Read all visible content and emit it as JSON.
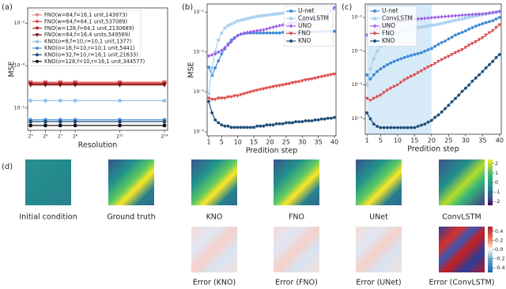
{
  "chart_data": [
    {
      "type": "line",
      "label": "(a)",
      "xlabel": "Resolution",
      "ylabel": "MSE",
      "xscale": "log",
      "yscale": "log",
      "legend": "upper left",
      "xlim": [
        28,
        19000
      ],
      "ylim": [
        3e-06,
        0.0023
      ],
      "xticks": [
        {
          "value": 32,
          "label": "2⁵"
        },
        {
          "value": 64,
          "label": "2⁶"
        },
        {
          "value": 128,
          "label": "2⁷"
        },
        {
          "value": 256,
          "label": "2⁸"
        },
        {
          "value": 2048,
          "label": "2¹¹"
        },
        {
          "value": 16384,
          "label": "2¹⁴"
        }
      ],
      "yticks": [
        {
          "value": 0.001,
          "label": "10⁻³"
        },
        {
          "value": 0.0001,
          "label": "10⁻⁴"
        },
        {
          "value": 1e-05,
          "label": "10⁻⁵"
        }
      ],
      "x": [
        32,
        64,
        128,
        256,
        2048,
        16384
      ],
      "series": [
        {
          "name": "FNO(w=64,f=16,1 unit,143873)",
          "color": "#e88080",
          "marker": "tri",
          "values": [
            4.1e-05,
            4.1e-05,
            4.1e-05,
            4.1e-05,
            4.1e-05,
            4.1e-05
          ]
        },
        {
          "name": "FNO(w=64,f=64,1 unit,537089)",
          "color": "#d44b4b",
          "marker": "tri",
          "values": [
            3.9e-05,
            3.9e-05,
            3.9e-05,
            3.9e-05,
            3.9e-05,
            3.9e-05
          ]
        },
        {
          "name": "FNO(w=128,f=64,1 unit,2130689)",
          "color": "#b02323",
          "marker": "tri",
          "values": [
            3.7e-05,
            3.7e-05,
            3.7e-05,
            3.7e-05,
            3.7e-05,
            3.7e-05
          ]
        },
        {
          "name": "FNO(w=64,f=16,4 units,549569)",
          "color": "#7a1010",
          "marker": "tri",
          "values": [
            3.5e-05,
            3.5e-05,
            3.5e-05,
            3.5e-05,
            3.5e-05,
            3.5e-05
          ]
        },
        {
          "name": "KNO(o=8,f=10,r=10,1 unit,1377)",
          "color": "#8fc1ec",
          "marker": "circle",
          "values": [
            1.5e-05,
            1.5e-05,
            1.5e-05,
            1.5e-05,
            1.5e-05,
            1.5e-05
          ]
        },
        {
          "name": "KNO(o=16,f=10,r=10,1 unit,5441)",
          "color": "#4a90d9",
          "marker": "circle",
          "values": [
            5.3e-06,
            5.3e-06,
            5.3e-06,
            5.3e-06,
            5.3e-06,
            5.3e-06
          ]
        },
        {
          "name": "KNO(o=32,f=10,r=16,1 unit,21633)",
          "color": "#1f4e79",
          "marker": "circle",
          "values": [
            4.8e-06,
            4.8e-06,
            4.8e-06,
            4.8e-06,
            4.8e-06,
            4.8e-06
          ]
        },
        {
          "name": "KNO(o=128,f=10,r=16,1 unit,344577)",
          "color": "#111111",
          "marker": "circle",
          "values": [
            3.9e-06,
            3.9e-06,
            3.9e-06,
            3.9e-06,
            3.9e-06,
            3.9e-06
          ]
        }
      ]
    },
    {
      "type": "line",
      "label": "(b)",
      "xlabel": "Predition step",
      "ylabel": "MSE",
      "yscale": "log",
      "legend": "upper right",
      "xlim": [
        0.5,
        40.5
      ],
      "ylim": [
        8e-05,
        0.16
      ],
      "xticks": [
        1,
        5,
        10,
        15,
        20,
        25,
        30,
        35,
        40
      ],
      "yticks": [
        {
          "value": 0.0001,
          "label": "10⁻⁴"
        },
        {
          "value": 0.001,
          "label": "10⁻³"
        },
        {
          "value": 0.01,
          "label": "10⁻²"
        },
        {
          "value": 0.1,
          "label": "10⁻¹"
        }
      ],
      "x": [
        1,
        2,
        3,
        4,
        5,
        6,
        7,
        8,
        9,
        10,
        11,
        12,
        13,
        14,
        15,
        16,
        17,
        18,
        19,
        20,
        21,
        22,
        23,
        24,
        25,
        26,
        27,
        28,
        29,
        30,
        31,
        32,
        33,
        34,
        35,
        36,
        37,
        38,
        39,
        40
      ],
      "series": [
        {
          "name": "U-net",
          "color": "#3d8ad6",
          "marker": "circle",
          "values": [
            0.0042,
            0.0026,
            0.004,
            0.006,
            0.009,
            0.012,
            0.016,
            0.02,
            0.023,
            0.026,
            0.028,
            0.029,
            0.03,
            0.03,
            0.03,
            0.03,
            0.03,
            0.03,
            0.03,
            0.03,
            0.03,
            0.03,
            0.03,
            0.031,
            0.031,
            0.031,
            0.031,
            0.031,
            0.031,
            0.032,
            0.032,
            0.032,
            0.032,
            0.032,
            0.032,
            0.033,
            0.033,
            0.033,
            0.033,
            0.033
          ]
        },
        {
          "name": "ConvLSTM",
          "color": "#a9d0f2",
          "marker": "square",
          "values": [
            0.0009,
            0.004,
            0.01,
            0.02,
            0.03,
            0.04,
            0.046,
            0.05,
            0.055,
            0.06,
            0.063,
            0.066,
            0.069,
            0.072,
            0.075,
            0.078,
            0.08,
            0.082,
            0.084,
            0.086,
            0.088,
            0.09,
            0.092,
            0.094,
            0.096,
            0.098,
            0.1,
            0.102,
            0.104,
            0.106,
            0.108,
            0.11,
            0.112,
            0.113,
            0.114,
            0.115,
            0.116,
            0.117,
            0.118,
            0.12
          ]
        },
        {
          "name": "UNO",
          "color": "#9b5de5",
          "marker": "diamond",
          "values": [
            0.008,
            0.0085,
            0.009,
            0.01,
            0.011,
            0.013,
            0.015,
            0.018,
            0.022,
            0.026,
            0.028,
            0.03,
            0.031,
            0.032,
            0.033,
            0.034,
            0.035,
            0.036,
            0.038,
            0.04,
            0.042,
            0.044,
            0.046,
            0.048,
            0.05,
            0.052,
            0.054,
            0.056,
            0.058,
            0.06,
            0.062,
            0.064,
            0.066,
            0.068,
            0.07,
            0.075,
            0.08,
            0.09,
            0.11,
            0.13
          ]
        },
        {
          "name": "FNO",
          "color": "#dc4c4c",
          "marker": "tri",
          "values": [
            0.0007,
            0.00065,
            0.00065,
            0.0007,
            0.0007,
            0.0007,
            0.00075,
            0.00075,
            0.0008,
            0.0008,
            0.00085,
            0.0009,
            0.00095,
            0.001,
            0.00105,
            0.0011,
            0.00115,
            0.0012,
            0.00125,
            0.0013,
            0.00135,
            0.0014,
            0.00145,
            0.0015,
            0.00155,
            0.0016,
            0.0017,
            0.00175,
            0.0018,
            0.0019,
            0.002,
            0.00205,
            0.0021,
            0.0022,
            0.0023,
            0.0024,
            0.0025,
            0.0026,
            0.0027,
            0.0028
          ]
        },
        {
          "name": "KNO",
          "color": "#1f4e79",
          "marker": "circle",
          "values": [
            0.00058,
            0.0003,
            0.0002,
            0.00017,
            0.00015,
            0.00014,
            0.00014,
            0.00013,
            0.00013,
            0.00013,
            0.00013,
            0.00013,
            0.00013,
            0.00013,
            0.00013,
            0.00014,
            0.00014,
            0.00014,
            0.00015,
            0.00015,
            0.00015,
            0.00016,
            0.00016,
            0.00016,
            0.00017,
            0.00017,
            0.00017,
            0.00018,
            0.00018,
            0.00018,
            0.00019,
            0.00019,
            0.00019,
            0.0002,
            0.0002,
            0.00021,
            0.00021,
            0.00022,
            0.00022,
            0.00023
          ]
        }
      ]
    },
    {
      "type": "line",
      "label": "(c)",
      "xlabel": "Predition step",
      "yscale": "log",
      "legend": "upper left",
      "shade": [
        1,
        20
      ],
      "shade_color": "#d6eaf8",
      "xlim": [
        0.5,
        40.5
      ],
      "ylim": [
        3.5e-05,
        0.25
      ],
      "xticks": [
        1,
        5,
        10,
        15,
        20,
        25,
        30,
        35,
        40
      ],
      "yticks": [
        {
          "value": 0.0001,
          "label": "10⁻⁴"
        },
        {
          "value": 0.001,
          "label": "10⁻³"
        },
        {
          "value": 0.01,
          "label": "10⁻²"
        },
        {
          "value": 0.1,
          "label": "10⁻¹"
        }
      ],
      "x": [
        1,
        2,
        3,
        4,
        5,
        6,
        7,
        8,
        9,
        10,
        11,
        12,
        13,
        14,
        15,
        16,
        17,
        18,
        19,
        20,
        21,
        22,
        23,
        24,
        25,
        26,
        27,
        28,
        29,
        30,
        31,
        32,
        33,
        34,
        35,
        36,
        37,
        38,
        39,
        40
      ],
      "series": [
        {
          "name": "U-net",
          "color": "#3d8ad6",
          "marker": "circle",
          "values": [
            0.002,
            0.0015,
            0.002,
            0.0025,
            0.003,
            0.0035,
            0.004,
            0.0045,
            0.005,
            0.0055,
            0.006,
            0.0065,
            0.007,
            0.0075,
            0.008,
            0.0085,
            0.009,
            0.01,
            0.011,
            0.012,
            0.014,
            0.016,
            0.018,
            0.02,
            0.023,
            0.026,
            0.03,
            0.033,
            0.036,
            0.04,
            0.045,
            0.05,
            0.055,
            0.06,
            0.065,
            0.07,
            0.075,
            0.08,
            0.09,
            0.1
          ]
        },
        {
          "name": "ConvLSTM",
          "color": "#a9d0f2",
          "marker": "square",
          "values": [
            0.001,
            0.003,
            0.006,
            0.01,
            0.014,
            0.018,
            0.022,
            0.026,
            0.03,
            0.033,
            0.036,
            0.039,
            0.042,
            0.045,
            0.048,
            0.05,
            0.052,
            0.054,
            0.056,
            0.058,
            0.06,
            0.063,
            0.066,
            0.07,
            0.074,
            0.078,
            0.082,
            0.086,
            0.09,
            0.095,
            0.1,
            0.105,
            0.11,
            0.115,
            0.12,
            0.125,
            0.13,
            0.135,
            0.14,
            0.15
          ]
        },
        {
          "name": "UNO",
          "color": "#9b5de5",
          "marker": "diamond",
          "values": [
            0.03,
            0.035,
            0.04,
            0.045,
            0.05,
            0.055,
            0.06,
            0.065,
            0.07,
            0.073,
            0.076,
            0.079,
            0.082,
            0.085,
            0.088,
            0.09,
            0.092,
            0.094,
            0.096,
            0.098,
            0.1,
            0.102,
            0.104,
            0.106,
            0.108,
            0.11,
            0.112,
            0.114,
            0.116,
            0.118,
            0.12,
            0.122,
            0.124,
            0.126,
            0.128,
            0.13,
            0.135,
            0.14,
            0.145,
            0.15
          ]
        },
        {
          "name": "FNO",
          "color": "#dc4c4c",
          "marker": "tri",
          "values": [
            0.0004,
            0.00035,
            0.0004,
            0.00045,
            0.0005,
            0.0006,
            0.0007,
            0.0008,
            0.0009,
            0.001,
            0.0012,
            0.0014,
            0.0016,
            0.0018,
            0.002,
            0.0023,
            0.0026,
            0.003,
            0.0034,
            0.0038,
            0.0043,
            0.005,
            0.0056,
            0.0063,
            0.007,
            0.008,
            0.009,
            0.01,
            0.011,
            0.013,
            0.015,
            0.017,
            0.019,
            0.022,
            0.025,
            0.03,
            0.035,
            0.04,
            0.05,
            0.06
          ]
        },
        {
          "name": "KNO",
          "color": "#1f4e79",
          "marker": "circle",
          "values": [
            0.00015,
            0.0001,
            7e-05,
            6e-05,
            5.5e-05,
            5.5e-05,
            5.5e-05,
            5.5e-05,
            5.5e-05,
            5.5e-05,
            5.5e-05,
            5.5e-05,
            5.5e-05,
            5.5e-05,
            5.5e-05,
            6e-05,
            6.5e-05,
            7e-05,
            8e-05,
            9e-05,
            0.00011,
            0.00013,
            0.00016,
            0.0002,
            0.00025,
            0.00032,
            0.0004,
            0.0005,
            0.00065,
            0.0008,
            0.001,
            0.0013,
            0.0016,
            0.002,
            0.0025,
            0.0032,
            0.004,
            0.005,
            0.0065,
            0.008
          ]
        }
      ]
    }
  ],
  "images": {
    "label": "(d)",
    "top_captions": [
      "Initial condition",
      "Ground truth",
      "KNO",
      "FNO",
      "UNet",
      "ConvLSTM"
    ],
    "bottom_captions": [
      "Error (KNO)",
      "Error (FNO)",
      "Error (UNet)",
      "Error (ConvLSTM)"
    ],
    "colorbar_top": {
      "lim": [
        -2.4,
        2.4
      ],
      "ticks": [
        2,
        1,
        0,
        -1,
        -2
      ]
    },
    "colorbar_bottom": {
      "lim": [
        -0.5,
        0.5
      ],
      "ticks": [
        0.4,
        0.2,
        {
          "value": 0,
          "label": "0.0"
        },
        -0.2,
        -0.4
      ]
    }
  }
}
